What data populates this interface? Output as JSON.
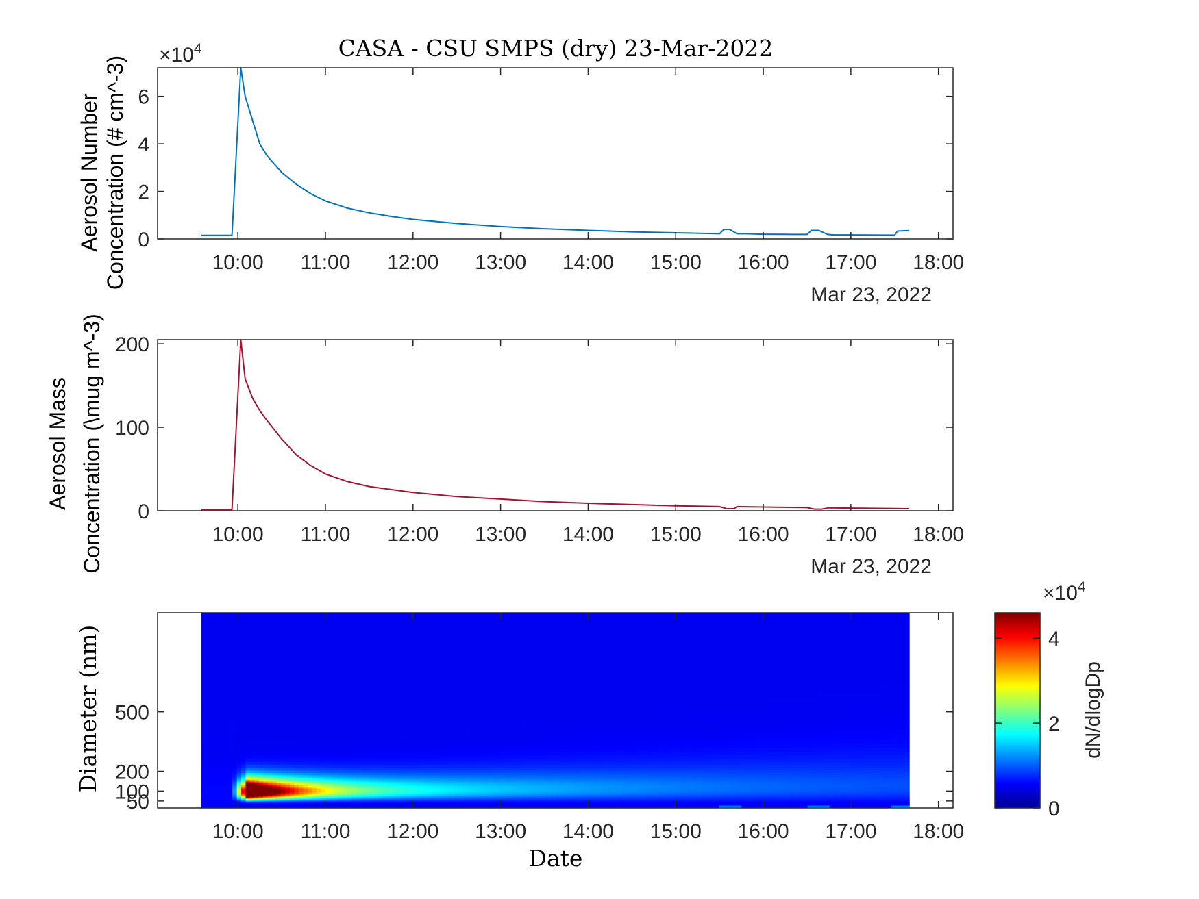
{
  "title": "CASA - CSU SMPS (dry) 23-Mar-2022",
  "colors": {
    "number_line": "#0072BD",
    "mass_line": "#A2142F",
    "axis": "#262626"
  },
  "chart_data": [
    {
      "type": "line",
      "panel": "number",
      "ylabel_lines": [
        "Aerosol Number",
        "Concentration (# cm^-3)"
      ],
      "y_exponent_base": "×10",
      "y_exponent": "4",
      "yticks": [
        "0",
        "2",
        "4",
        "6"
      ],
      "ylim": [
        0,
        7.2
      ],
      "xlim": [
        "09:05",
        "18:10"
      ],
      "xticks": [
        "10:00",
        "11:00",
        "12:00",
        "13:00",
        "14:00",
        "15:00",
        "16:00",
        "17:00",
        "18:00"
      ],
      "date_label": "Mar 23, 2022",
      "grid": false,
      "series": [
        {
          "x": [
            "09:35",
            "09:55",
            "09:56",
            "10:02",
            "10:05",
            "10:10",
            "10:15",
            "10:20",
            "10:30",
            "10:40",
            "10:50",
            "11:00",
            "11:15",
            "11:30",
            "11:45",
            "12:00",
            "12:30",
            "13:00",
            "13:30",
            "14:00",
            "14:30",
            "15:00",
            "15:30",
            "15:33",
            "15:37",
            "15:42",
            "15:48",
            "16:00",
            "16:20",
            "16:30",
            "16:33",
            "16:38",
            "16:44",
            "16:48",
            "17:00",
            "17:20",
            "17:30",
            "17:32",
            "17:40"
          ],
          "values": [
            0.15,
            0.15,
            0.15,
            7.2,
            6.0,
            5.0,
            4.0,
            3.5,
            2.8,
            2.3,
            1.9,
            1.6,
            1.3,
            1.1,
            0.95,
            0.82,
            0.65,
            0.52,
            0.43,
            0.36,
            0.3,
            0.26,
            0.22,
            0.4,
            0.4,
            0.22,
            0.22,
            0.2,
            0.19,
            0.19,
            0.36,
            0.36,
            0.19,
            0.17,
            0.17,
            0.16,
            0.16,
            0.33,
            0.35
          ]
        }
      ]
    },
    {
      "type": "line",
      "panel": "mass",
      "ylabel_lines": [
        "Aerosol Mass",
        "Concentration (\\mug m^-3)"
      ],
      "yticks": [
        "0",
        "100",
        "200"
      ],
      "ylim": [
        0,
        205
      ],
      "xlim": [
        "09:05",
        "18:10"
      ],
      "xticks": [
        "10:00",
        "11:00",
        "12:00",
        "13:00",
        "14:00",
        "15:00",
        "16:00",
        "17:00",
        "18:00"
      ],
      "date_label": "Mar 23, 2022",
      "grid": false,
      "series": [
        {
          "x": [
            "09:35",
            "09:55",
            "09:56",
            "10:02",
            "10:05",
            "10:10",
            "10:15",
            "10:20",
            "10:30",
            "10:40",
            "10:50",
            "11:00",
            "11:15",
            "11:30",
            "12:00",
            "12:30",
            "13:00",
            "13:30",
            "14:00",
            "14:30",
            "15:00",
            "15:30",
            "15:35",
            "15:40",
            "15:42",
            "16:00",
            "16:30",
            "16:35",
            "16:40",
            "16:45",
            "17:00",
            "17:30",
            "17:40"
          ],
          "values": [
            1.5,
            1.5,
            1.5,
            205,
            158,
            135,
            120,
            108,
            86,
            67,
            54,
            44,
            35,
            29,
            22,
            17,
            14,
            11,
            9,
            7.5,
            6,
            5,
            2.5,
            2.5,
            5,
            4.5,
            3.8,
            2,
            2,
            3.5,
            3.2,
            2.6,
            2.5
          ]
        }
      ]
    },
    {
      "type": "heatmap",
      "panel": "size-distribution",
      "xlabel": "Date",
      "ylabel": "Diameter (nm)",
      "yticks": [
        "50",
        "100",
        "200",
        "500"
      ],
      "ylim": [
        15,
        1000
      ],
      "yscale": "linear",
      "xlim": [
        "09:05",
        "18:10"
      ],
      "xticks": [
        "10:00",
        "11:00",
        "12:00",
        "13:00",
        "14:00",
        "15:00",
        "16:00",
        "17:00",
        "18:00"
      ],
      "data_x_range": [
        "09:35",
        "17:40"
      ],
      "colormap": "jet",
      "colorbar": {
        "label": "dN/dlogDp",
        "exponent_base": "×10",
        "exponent": "4",
        "ticks": [
          "0",
          "2",
          "4"
        ],
        "clim": [
          0,
          4.6
        ]
      },
      "peak": {
        "time": "10:05",
        "diameter": 100,
        "value": 4.6
      }
    }
  ]
}
